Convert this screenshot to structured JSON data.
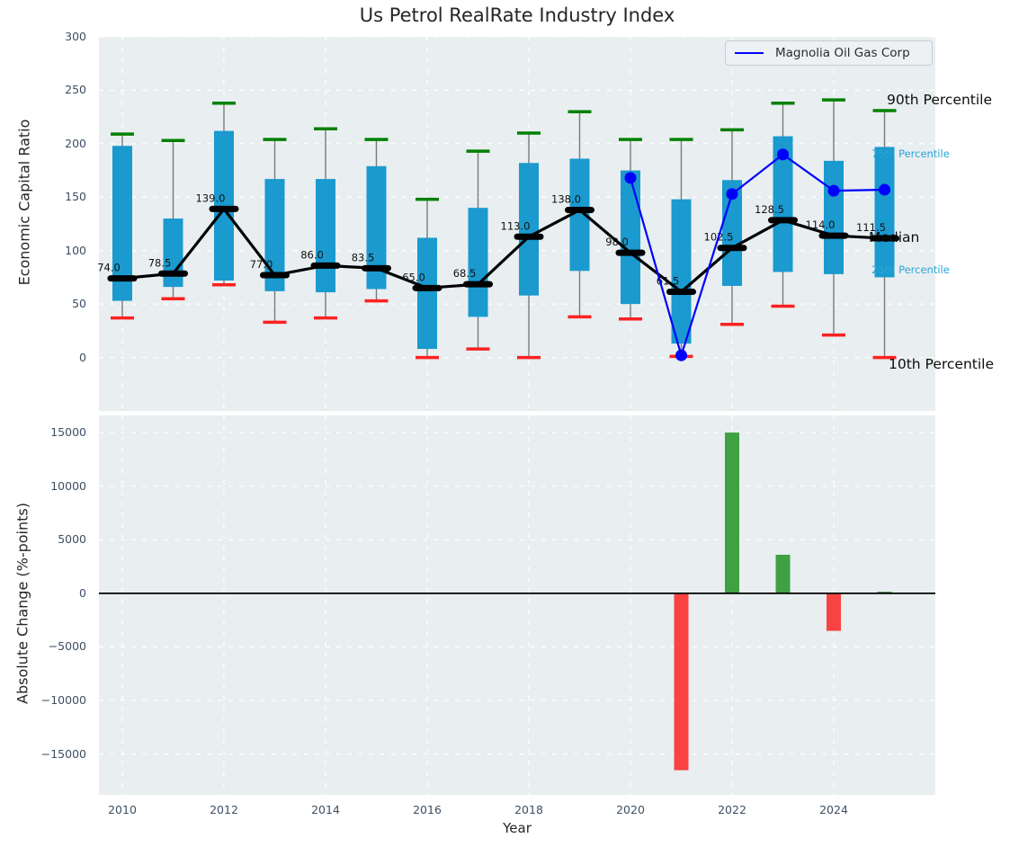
{
  "title": "Us Petrol RealRate Industry Index",
  "legend": {
    "label": "Magnolia Oil Gas Corp"
  },
  "colors": {
    "axes_background": "#e9eef0",
    "grid": "#ffffff",
    "box_fill": "#1a9acf",
    "whisker": "#7a7a7a",
    "p90_cap": "#008000",
    "p10_cap": "#fb2121",
    "median": "#000000",
    "median_label": "#111111",
    "company_line": "#0000ff",
    "bar_positive": "#3fa144",
    "bar_negative": "#f94343",
    "tick_label": "#3d4f63",
    "percentile_label_small": "#2aa6d8",
    "percentile_label_big": "#0d0d0d"
  },
  "chart_data": [
    {
      "type": "boxplot+line",
      "panel": "top",
      "title": "Us Petrol RealRate Industry Index",
      "ylabel": "Economic Capital Ratio",
      "ylim": [
        -50,
        300
      ],
      "yticks": [
        0,
        50,
        100,
        150,
        200,
        250,
        300
      ],
      "xticks": [
        2010,
        2012,
        2014,
        2016,
        2018,
        2020,
        2022,
        2024
      ],
      "grid": true,
      "years": [
        2010,
        2011,
        2012,
        2013,
        2014,
        2015,
        2016,
        2017,
        2018,
        2019,
        2020,
        2021,
        2022,
        2023,
        2024,
        2025
      ],
      "series": {
        "p90": [
          209,
          203,
          238,
          204,
          214,
          204,
          148,
          193,
          210,
          230,
          204,
          204,
          213,
          238,
          241,
          231
        ],
        "p75": [
          198,
          130,
          212,
          167,
          167,
          179,
          112,
          140,
          182,
          186,
          175,
          148,
          166,
          207,
          184,
          197
        ],
        "median": [
          74.0,
          78.5,
          139.0,
          77.0,
          86.0,
          83.5,
          65.0,
          68.5,
          113.0,
          138.0,
          98.0,
          61.5,
          102.5,
          128.5,
          114.0,
          111.5
        ],
        "p25": [
          53,
          66,
          72,
          62,
          61,
          64,
          8,
          38,
          58,
          81,
          50,
          13,
          67,
          80,
          78,
          75
        ],
        "p10": [
          37,
          55,
          68,
          33,
          37,
          53,
          0,
          8,
          0,
          38,
          36,
          1,
          31,
          48,
          21,
          0
        ]
      },
      "median_labels": [
        "74.0",
        "78.5",
        "139.0",
        "77.0",
        "86.0",
        "83.5",
        "65.0",
        "68.5",
        "113.0",
        "138.0",
        "98.0",
        "61.5",
        "102.5",
        "128.5",
        "114.0",
        "111.5"
      ],
      "company_line": {
        "name": "Magnolia Oil Gas Corp",
        "years": [
          2020,
          2021,
          2022,
          2023,
          2024,
          2025
        ],
        "values": [
          168,
          2,
          153,
          190,
          156,
          157
        ]
      },
      "right_annotations": [
        {
          "text": "90th Percentile",
          "size": "big"
        },
        {
          "text": "75th Percentile",
          "size": "small"
        },
        {
          "text": "Median",
          "size": "big"
        },
        {
          "text": "25th Percentile",
          "size": "small"
        },
        {
          "text": "10th Percentile",
          "size": "big"
        }
      ]
    },
    {
      "type": "bar",
      "panel": "bottom",
      "ylabel": "Absolute Change (%-points)",
      "xlabel": "Year",
      "ylim": [
        -18800,
        16600
      ],
      "yticks": [
        15000,
        10000,
        5000,
        0,
        -5000,
        -10000,
        -15000
      ],
      "xticks": [
        2010,
        2012,
        2014,
        2016,
        2018,
        2020,
        2022,
        2024
      ],
      "grid": true,
      "years": [
        2010,
        2011,
        2012,
        2013,
        2014,
        2015,
        2016,
        2017,
        2018,
        2019,
        2020,
        2021,
        2022,
        2023,
        2024,
        2025
      ],
      "values": [
        0,
        0,
        0,
        0,
        0,
        0,
        0,
        0,
        0,
        0,
        0,
        -16500,
        15000,
        3600,
        -3500,
        150
      ]
    }
  ]
}
